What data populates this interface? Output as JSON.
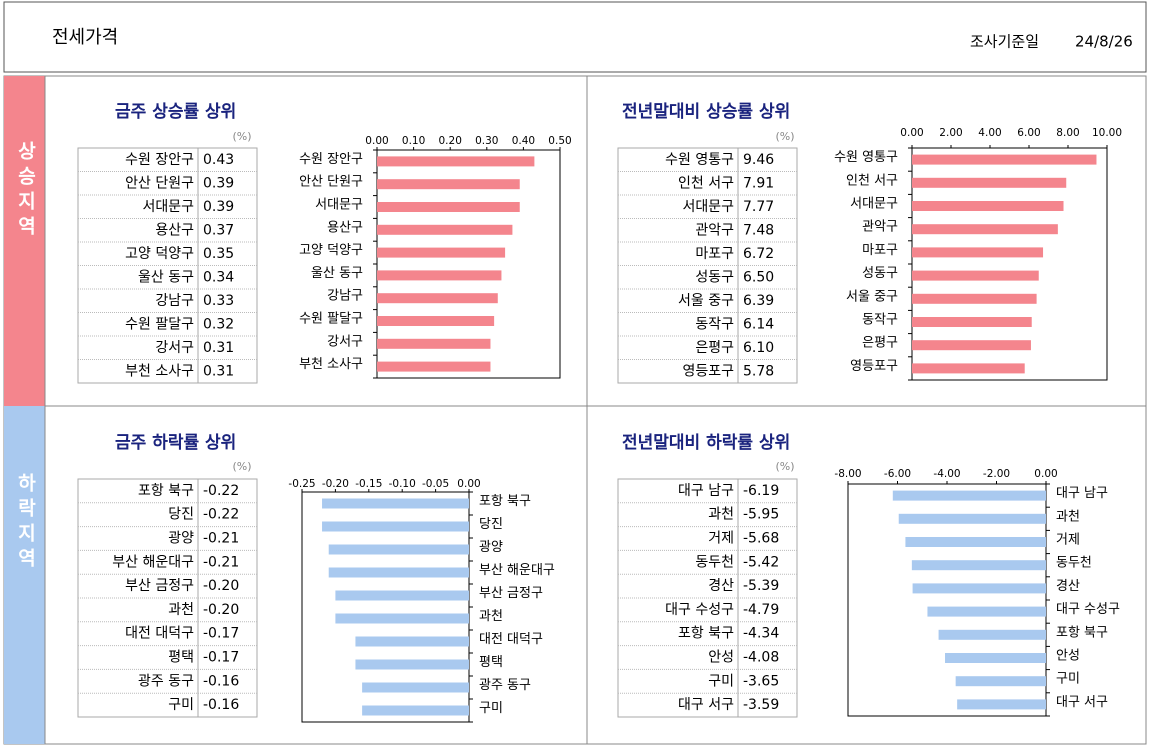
{
  "header": {
    "title": "전세가격",
    "date_label": "조사기준일",
    "date": "24/8/26"
  },
  "sections": [
    "상승지역",
    "하락지역"
  ],
  "chart_data": [
    {
      "type": "bar",
      "orientation": "horizontal",
      "title": "금주 상승률 상위",
      "unit": "(%)",
      "color": "#f4858d",
      "categories": [
        "수원 장안구",
        "안산 단원구",
        "서대문구",
        "용산구",
        "고양 덕양구",
        "울산 동구",
        "강남구",
        "수원 팔달구",
        "강서구",
        "부천 소사구"
      ],
      "values": [
        0.43,
        0.39,
        0.39,
        0.37,
        0.35,
        0.34,
        0.33,
        0.32,
        0.31,
        0.31
      ],
      "value_labels": [
        "0.43",
        "0.39",
        "0.39",
        "0.37",
        "0.35",
        "0.34",
        "0.33",
        "0.32",
        "0.31",
        "0.31"
      ],
      "xlim": [
        0,
        0.5
      ],
      "xticks": [
        {
          "value": 0,
          "label": "0.00"
        },
        {
          "value": 0.1,
          "label": "0.10"
        },
        {
          "value": 0.2,
          "label": "0.20"
        },
        {
          "value": 0.3,
          "label": "0.30"
        },
        {
          "value": 0.4,
          "label": "0.40"
        },
        {
          "value": 0.5,
          "label": "0.50"
        }
      ]
    },
    {
      "type": "bar",
      "orientation": "horizontal",
      "title": "전년말대비 상승률 상위",
      "unit": "(%)",
      "color": "#f4858d",
      "categories": [
        "수원 영통구",
        "인천 서구",
        "서대문구",
        "관악구",
        "마포구",
        "성동구",
        "서울 중구",
        "동작구",
        "은평구",
        "영등포구"
      ],
      "values": [
        9.46,
        7.91,
        7.77,
        7.48,
        6.72,
        6.5,
        6.39,
        6.14,
        6.1,
        5.78
      ],
      "value_labels": [
        "9.46",
        "7.91",
        "7.77",
        "7.48",
        "6.72",
        "6.50",
        "6.39",
        "6.14",
        "6.10",
        "5.78"
      ],
      "xlim": [
        0,
        10
      ],
      "xticks": [
        {
          "value": 0,
          "label": "0.00"
        },
        {
          "value": 2,
          "label": "2.00"
        },
        {
          "value": 4,
          "label": "4.00"
        },
        {
          "value": 6,
          "label": "6.00"
        },
        {
          "value": 8,
          "label": "8.00"
        },
        {
          "value": 10,
          "label": "10.00"
        }
      ]
    },
    {
      "type": "bar",
      "orientation": "horizontal",
      "title": "금주 하락률 상위",
      "unit": "(%)",
      "color": "#a9c9ef",
      "categories": [
        "포항 북구",
        "당진",
        "광양",
        "부산 해운대구",
        "부산 금정구",
        "과천",
        "대전 대덕구",
        "평택",
        "광주 동구",
        "구미"
      ],
      "values": [
        -0.22,
        -0.22,
        -0.21,
        -0.21,
        -0.2,
        -0.2,
        -0.17,
        -0.17,
        -0.16,
        -0.16
      ],
      "value_labels": [
        "-0.22",
        "-0.22",
        "-0.21",
        "-0.21",
        "-0.20",
        "-0.20",
        "-0.17",
        "-0.17",
        "-0.16",
        "-0.16"
      ],
      "xlim": [
        -0.25,
        0
      ],
      "xticks": [
        {
          "value": -0.25,
          "label": "-0.25"
        },
        {
          "value": -0.2,
          "label": "-0.20"
        },
        {
          "value": -0.15,
          "label": "-0.15"
        },
        {
          "value": -0.1,
          "label": "-0.10"
        },
        {
          "value": -0.05,
          "label": "-0.05"
        },
        {
          "value": 0,
          "label": "0.00"
        }
      ]
    },
    {
      "type": "bar",
      "orientation": "horizontal",
      "title": "전년말대비 하락률 상위",
      "unit": "(%)",
      "color": "#a9c9ef",
      "categories": [
        "대구 남구",
        "과천",
        "거제",
        "동두천",
        "경산",
        "대구 수성구",
        "포항 북구",
        "안성",
        "구미",
        "대구 서구"
      ],
      "values": [
        -6.19,
        -5.95,
        -5.68,
        -5.42,
        -5.39,
        -4.79,
        -4.34,
        -4.08,
        -3.65,
        -3.59
      ],
      "value_labels": [
        "-6.19",
        "-5.95",
        "-5.68",
        "-5.42",
        "-5.39",
        "-4.79",
        "-4.34",
        "-4.08",
        "-3.65",
        "-3.59"
      ],
      "xlim": [
        -8,
        0
      ],
      "xticks": [
        {
          "value": -8,
          "label": "-8.00"
        },
        {
          "value": -6,
          "label": "-6.00"
        },
        {
          "value": -4,
          "label": "-4.00"
        },
        {
          "value": -2,
          "label": "-2.00"
        },
        {
          "value": 0,
          "label": "0.00"
        }
      ]
    }
  ]
}
